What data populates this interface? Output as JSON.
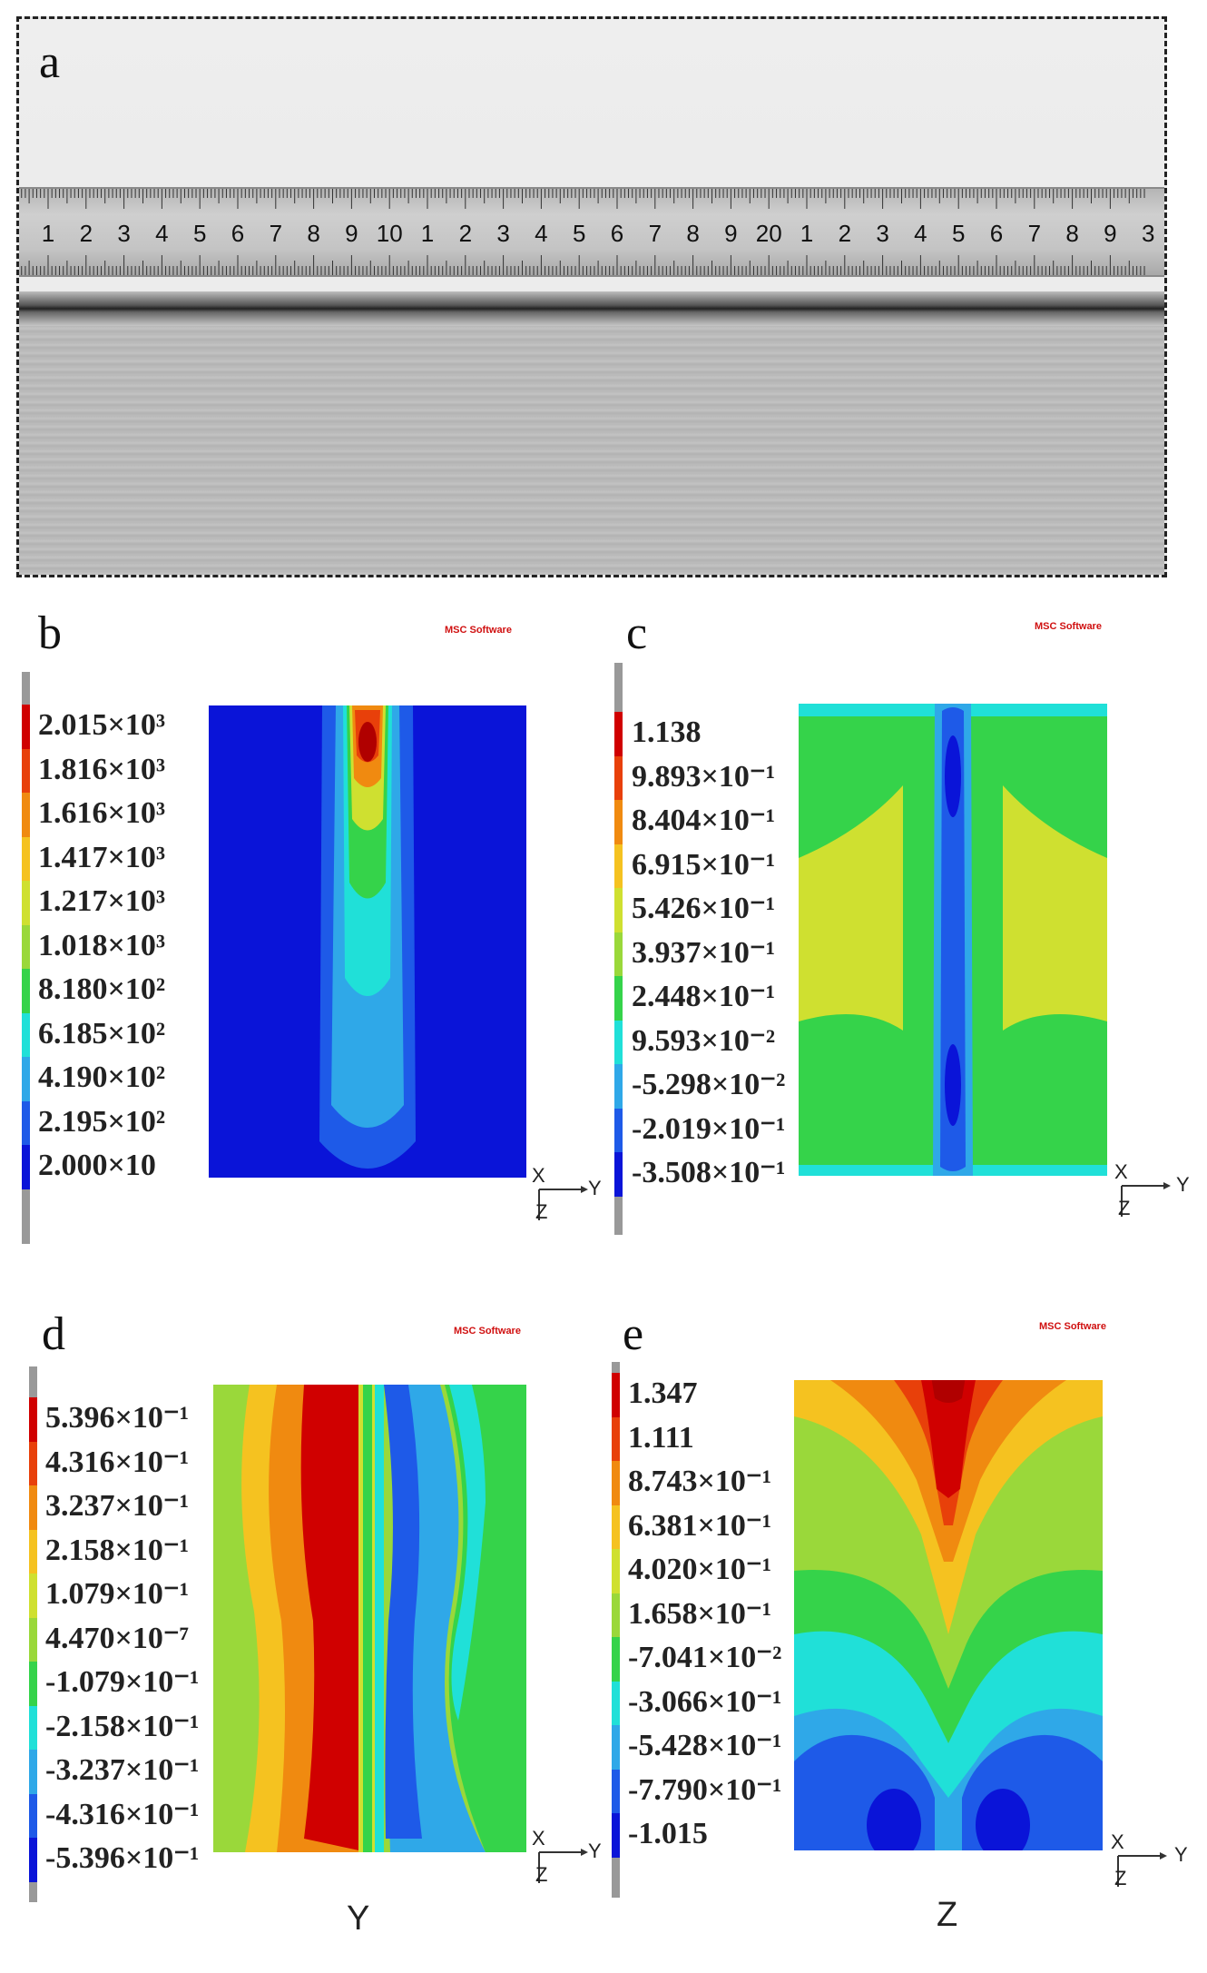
{
  "panels": {
    "a": {
      "letter": "a"
    },
    "b": {
      "letter": "b",
      "logo": "MSC Software",
      "legend": [
        "2.015×10³",
        "1.816×10³",
        "1.616×10³",
        "1.417×10³",
        "1.217×10³",
        "1.018×10³",
        "8.180×10²",
        "6.185×10²",
        "4.190×10²",
        "2.195×10²",
        "2.000×10"
      ]
    },
    "c": {
      "letter": "c",
      "logo": "MSC Software",
      "legend": [
        "1.138",
        "9.893×10⁻¹",
        "8.404×10⁻¹",
        "6.915×10⁻¹",
        "5.426×10⁻¹",
        "3.937×10⁻¹",
        "2.448×10⁻¹",
        "9.593×10⁻²",
        "-5.298×10⁻²",
        "-2.019×10⁻¹",
        "-3.508×10⁻¹"
      ]
    },
    "d": {
      "letter": "d",
      "logo": "MSC Software",
      "bottom_label": "Y",
      "legend": [
        "5.396×10⁻¹",
        "4.316×10⁻¹",
        "3.237×10⁻¹",
        "2.158×10⁻¹",
        "1.079×10⁻¹",
        "4.470×10⁻⁷",
        "-1.079×10⁻¹",
        "-2.158×10⁻¹",
        "-3.237×10⁻¹",
        "-4.316×10⁻¹",
        "-5.396×10⁻¹"
      ]
    },
    "e": {
      "letter": "e",
      "logo": "MSC Software",
      "bottom_label": "Z",
      "legend": [
        "1.347",
        "1.111",
        "8.743×10⁻¹",
        "6.381×10⁻¹",
        "4.020×10⁻¹",
        "1.658×10⁻¹",
        "-7.041×10⁻²",
        "-3.066×10⁻¹",
        "-5.428×10⁻¹",
        "-7.790×10⁻¹",
        "-1.015"
      ]
    }
  },
  "axes": {
    "x": "X",
    "y": "Y",
    "z": "Z"
  },
  "ruler_labels": [
    "1",
    "2",
    "3",
    "4",
    "5",
    "6",
    "7",
    "8",
    "9",
    "10",
    "1",
    "2",
    "3",
    "4",
    "5",
    "6",
    "7",
    "8",
    "9",
    "20",
    "1",
    "2",
    "3",
    "4",
    "5",
    "6",
    "7",
    "8",
    "9",
    "3"
  ],
  "colors": {
    "c1": "#d00000",
    "c2": "#e8400a",
    "c3": "#f08a10",
    "c4": "#f5c220",
    "c5": "#cfe030",
    "c6": "#9ad83a",
    "c7": "#35d34a",
    "c8": "#20e0d8",
    "c9": "#2fa8e8",
    "c10": "#1e5ae8",
    "c11": "#0a14d8"
  }
}
